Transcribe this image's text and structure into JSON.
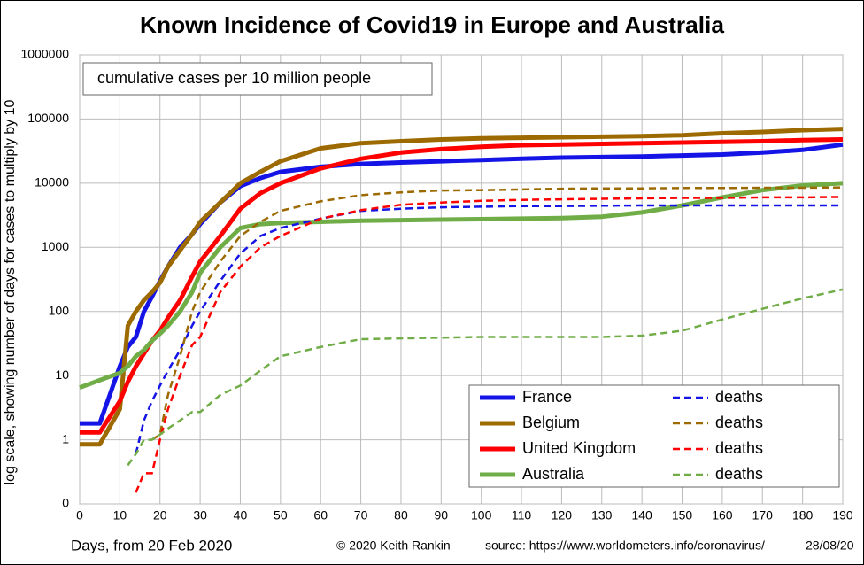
{
  "chart_data": {
    "type": "line",
    "title": "Known Incidence of Covid19 in Europe and Australia",
    "annotation": "cumulative cases per 10 million people",
    "y_label": "log scale, showing number of days for cases to multiply by 10",
    "x_label": "Days, from 20 Feb 2020",
    "credit": "© 2020  Keith  Rankin",
    "source": "source:  https://www.worldometers.info/coronavirus/",
    "date": "28/08/20",
    "log_y": true,
    "grid": true,
    "legend_position": "lower right",
    "xlim": [
      0,
      190
    ],
    "xticks": [
      0,
      10,
      20,
      30,
      40,
      50,
      60,
      70,
      80,
      90,
      100,
      110,
      120,
      130,
      140,
      150,
      160,
      170,
      180,
      190
    ],
    "ylim": [
      0.1,
      1000000
    ],
    "yticks": [
      {
        "value": 0.1,
        "label": "0"
      },
      1,
      10,
      100,
      1000,
      10000,
      100000,
      1000000
    ],
    "x": [
      0,
      5,
      10,
      12,
      14,
      16,
      18,
      20,
      22,
      25,
      28,
      30,
      35,
      40,
      45,
      50,
      60,
      70,
      80,
      90,
      100,
      110,
      120,
      130,
      140,
      150,
      160,
      170,
      180,
      190
    ],
    "series": [
      {
        "name": "France",
        "color": "#1414e6",
        "dashed": false,
        "values": [
          1.8,
          1.8,
          14,
          28,
          40,
          100,
          170,
          300,
          500,
          1000,
          1600,
          2300,
          5000,
          9000,
          12000,
          15000,
          18000,
          20000,
          21000,
          22000,
          23000,
          24000,
          25000,
          25500,
          26000,
          27000,
          28000,
          30000,
          33000,
          40000
        ]
      },
      {
        "name": "Belgium",
        "color": "#9c6a00",
        "dashed": false,
        "values": [
          0.85,
          0.85,
          3,
          60,
          100,
          150,
          200,
          280,
          500,
          900,
          1600,
          2500,
          5000,
          10000,
          15000,
          22000,
          35000,
          42000,
          45000,
          48000,
          50000,
          51000,
          52000,
          53000,
          54000,
          56000,
          60000,
          63000,
          67000,
          70000
        ]
      },
      {
        "name": "United Kingdom",
        "color": "#ff0000",
        "dashed": false,
        "values": [
          1.3,
          1.3,
          4,
          8,
          14,
          22,
          35,
          50,
          80,
          150,
          350,
          600,
          1500,
          4000,
          7000,
          10000,
          17000,
          24000,
          30000,
          34000,
          37000,
          39000,
          40000,
          41000,
          42000,
          43000,
          44000,
          45000,
          47000,
          48000
        ]
      },
      {
        "name": "Australia",
        "color": "#70ad47",
        "dashed": false,
        "values": [
          6.5,
          8.5,
          11,
          14,
          20,
          25,
          35,
          45,
          60,
          100,
          200,
          400,
          1000,
          2000,
          2300,
          2400,
          2500,
          2600,
          2650,
          2700,
          2750,
          2800,
          2850,
          3000,
          3500,
          4500,
          6000,
          7800,
          9200,
          10000
        ]
      },
      {
        "name": "deaths",
        "color": "#1414e6",
        "dashed": true,
        "values": [
          null,
          null,
          null,
          null,
          0.6,
          2,
          4,
          7,
          12,
          25,
          60,
          100,
          300,
          800,
          1500,
          2000,
          2800,
          3700,
          4000,
          4200,
          4300,
          4400,
          4400,
          4450,
          4500,
          4500,
          4500,
          4500,
          4500,
          4500
        ]
      },
      {
        "name": "deaths",
        "color": "#9c6a00",
        "dashed": true,
        "values": [
          null,
          null,
          null,
          null,
          null,
          null,
          1,
          1.2,
          5,
          20,
          100,
          200,
          600,
          1500,
          2500,
          3700,
          5200,
          6500,
          7200,
          7700,
          7800,
          8000,
          8200,
          8300,
          8300,
          8400,
          8400,
          8500,
          8500,
          8600
        ]
      },
      {
        "name": "deaths",
        "color": "#ff0000",
        "dashed": true,
        "values": [
          null,
          null,
          null,
          null,
          0.15,
          0.3,
          0.3,
          1,
          3,
          10,
          30,
          40,
          200,
          500,
          1000,
          1500,
          2800,
          3800,
          4600,
          5000,
          5300,
          5500,
          5600,
          5700,
          5800,
          5900,
          5900,
          6000,
          6000,
          6100
        ]
      },
      {
        "name": "deaths",
        "color": "#70ad47",
        "dashed": true,
        "values": [
          null,
          null,
          null,
          0.4,
          0.6,
          1,
          1,
          1.2,
          1.5,
          2,
          2.7,
          2.7,
          5,
          7,
          12,
          20,
          28,
          37,
          38,
          39,
          40,
          40,
          40,
          40,
          42,
          50,
          75,
          110,
          160,
          220
        ]
      }
    ]
  }
}
